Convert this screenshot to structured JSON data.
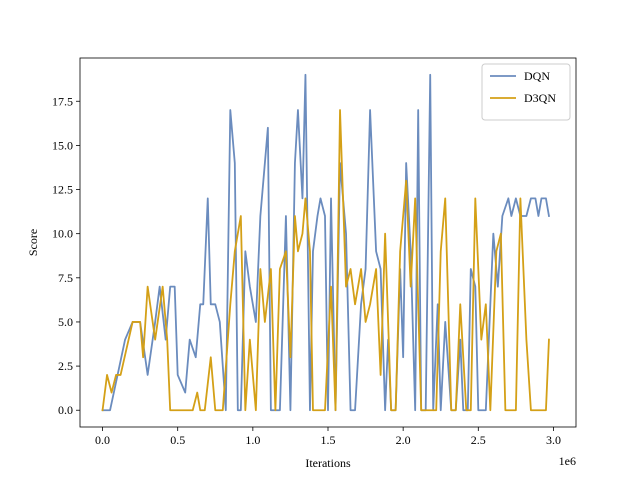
{
  "chart_data": {
    "type": "line",
    "xlabel": "Iterations",
    "ylabel": "Score",
    "x_multiplier_label": "1e6",
    "xlim": [
      -0.15,
      3.15
    ],
    "ylim": [
      -0.95,
      19.95
    ],
    "xticks": [
      0.0,
      0.5,
      1.0,
      1.5,
      2.0,
      2.5,
      3.0
    ],
    "xtick_labels": [
      "0.0",
      "0.5",
      "1.0",
      "1.5",
      "2.0",
      "2.5",
      "3.0"
    ],
    "yticks": [
      0,
      2.5,
      5,
      7.5,
      10,
      12.5,
      15,
      17.5
    ],
    "ytick_labels": [
      "0.0",
      "2.5",
      "5.0",
      "7.5",
      "10.0",
      "12.5",
      "15.0",
      "17.5"
    ],
    "legend_position": "top-right",
    "grid": false,
    "series": [
      {
        "name": "DQN",
        "color": "#6b8cbe",
        "x": [
          0.0,
          0.05,
          0.1,
          0.15,
          0.2,
          0.25,
          0.3,
          0.35,
          0.38,
          0.42,
          0.45,
          0.48,
          0.5,
          0.55,
          0.58,
          0.62,
          0.65,
          0.67,
          0.7,
          0.72,
          0.75,
          0.78,
          0.82,
          0.85,
          0.88,
          0.9,
          0.92,
          0.95,
          0.98,
          1.02,
          1.05,
          1.1,
          1.12,
          1.15,
          1.18,
          1.22,
          1.25,
          1.28,
          1.3,
          1.33,
          1.35,
          1.38,
          1.4,
          1.43,
          1.45,
          1.48,
          1.5,
          1.52,
          1.55,
          1.58,
          1.62,
          1.65,
          1.68,
          1.72,
          1.75,
          1.78,
          1.82,
          1.85,
          1.88,
          1.9,
          1.92,
          1.95,
          1.98,
          2.0,
          2.02,
          2.05,
          2.08,
          2.1,
          2.12,
          2.15,
          2.18,
          2.2,
          2.23,
          2.25,
          2.28,
          2.32,
          2.35,
          2.38,
          2.4,
          2.43,
          2.45,
          2.48,
          2.5,
          2.52,
          2.55,
          2.58,
          2.6,
          2.63,
          2.66,
          2.7,
          2.72,
          2.75,
          2.78,
          2.82,
          2.85,
          2.88,
          2.9,
          2.92,
          2.95,
          2.97
        ],
        "values": [
          0,
          0,
          2,
          4,
          5,
          5,
          2,
          5,
          7,
          4,
          7,
          7,
          2,
          1,
          4,
          3,
          6,
          6,
          12,
          6,
          6,
          5,
          0,
          17,
          14,
          0,
          0,
          9,
          7,
          5,
          11,
          16,
          0,
          0,
          0,
          11,
          0,
          14,
          17,
          12,
          19,
          0,
          9,
          11,
          12,
          11,
          0,
          12,
          0,
          14,
          10,
          0,
          0,
          6,
          8,
          17,
          9,
          8,
          0,
          4,
          0,
          0,
          8,
          3,
          14,
          9,
          0,
          17,
          0,
          0,
          19,
          0,
          6,
          0,
          5,
          0,
          0,
          4,
          0,
          0,
          8,
          7,
          0,
          0,
          0,
          6,
          10,
          7,
          11,
          12,
          11,
          12,
          11,
          11,
          12,
          12,
          11,
          12,
          12,
          11
        ]
      },
      {
        "name": "D3QN",
        "color": "#d4a017",
        "x": [
          0.0,
          0.03,
          0.06,
          0.09,
          0.12,
          0.2,
          0.25,
          0.27,
          0.3,
          0.35,
          0.4,
          0.43,
          0.45,
          0.5,
          0.55,
          0.6,
          0.63,
          0.65,
          0.68,
          0.72,
          0.75,
          0.8,
          0.85,
          0.88,
          0.92,
          0.95,
          0.98,
          1.02,
          1.05,
          1.08,
          1.12,
          1.15,
          1.18,
          1.22,
          1.25,
          1.28,
          1.3,
          1.33,
          1.35,
          1.38,
          1.4,
          1.45,
          1.48,
          1.52,
          1.55,
          1.58,
          1.62,
          1.65,
          1.68,
          1.72,
          1.75,
          1.78,
          1.82,
          1.85,
          1.88,
          1.92,
          1.95,
          1.98,
          2.02,
          2.05,
          2.08,
          2.12,
          2.15,
          2.18,
          2.22,
          2.25,
          2.28,
          2.32,
          2.35,
          2.38,
          2.42,
          2.45,
          2.48,
          2.52,
          2.55,
          2.58,
          2.62,
          2.65,
          2.68,
          2.72,
          2.75,
          2.78,
          2.82,
          2.85,
          2.88,
          2.92,
          2.95,
          2.97
        ],
        "values": [
          0,
          2,
          1,
          2,
          2,
          5,
          5,
          3,
          7,
          4,
          7,
          4,
          0,
          0,
          0,
          0,
          1,
          0,
          0,
          3,
          0,
          0,
          6,
          9,
          11,
          0,
          4,
          0,
          8,
          5,
          8,
          0,
          8,
          9,
          3,
          11,
          9,
          10,
          12,
          9,
          0,
          0,
          0,
          7,
          0,
          17,
          7,
          8,
          6,
          8,
          5,
          6,
          8,
          2,
          10,
          0,
          0,
          9,
          13,
          7,
          12,
          0,
          0,
          0,
          0,
          9,
          12,
          0,
          0,
          6,
          0,
          0,
          12,
          4,
          6,
          0,
          9,
          10,
          0,
          0,
          0,
          12,
          4,
          0,
          0,
          0,
          0,
          4
        ]
      }
    ]
  }
}
